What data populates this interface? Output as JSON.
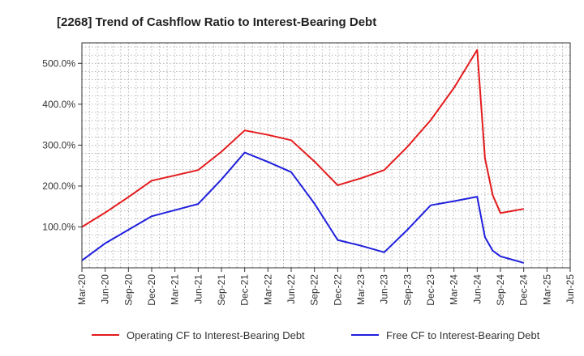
{
  "chart_data": {
    "type": "line",
    "title": "[2268]  Trend of Cashflow Ratio to Interest-Bearing Debt",
    "xlabel": "",
    "ylabel": "",
    "x": [
      "Mar-20",
      "Jun-20",
      "Sep-20",
      "Dec-20",
      "Mar-21",
      "Jun-21",
      "Sep-21",
      "Dec-21",
      "Mar-22",
      "Jun-22",
      "Sep-22",
      "Dec-22",
      "Mar-23",
      "Jun-23",
      "Sep-23",
      "Dec-23",
      "Mar-24",
      "Jun-24",
      "Sep-24",
      "Dec-24",
      "Mar-25",
      "Jun-25"
    ],
    "x_ticks": [
      "Mar-20",
      "Jun-20",
      "Sep-20",
      "Dec-20",
      "Mar-21",
      "Jun-21",
      "Sep-21",
      "Dec-21",
      "Mar-22",
      "Jun-22",
      "Sep-22",
      "Dec-22",
      "Mar-23",
      "Jun-23",
      "Sep-23",
      "Dec-23",
      "Mar-24",
      "Jun-24",
      "Sep-24",
      "Dec-24",
      "Mar-25",
      "Jun-25"
    ],
    "y_ticks": [
      100,
      200,
      300,
      400,
      500
    ],
    "y_tick_labels": [
      "100.0%",
      "200.0%",
      "300.0%",
      "400.0%",
      "500.0%"
    ],
    "ylim": [
      0,
      550
    ],
    "grid": true,
    "legend_position": "bottom",
    "series": [
      {
        "name": "Operating CF to Interest-Bearing Debt",
        "color": "#e41a1c",
        "points": [
          {
            "x": "Mar-20",
            "y": 100
          },
          {
            "x": "Jun-20",
            "y": 135
          },
          {
            "x": "Sep-20",
            "y": 173
          },
          {
            "x": "Dec-20",
            "y": 213
          },
          {
            "x": "Mar-21",
            "y": 226
          },
          {
            "x": "Jun-21",
            "y": 239
          },
          {
            "x": "Sep-21",
            "y": 284
          },
          {
            "x": "Dec-21",
            "y": 336
          },
          {
            "x": "Mar-22",
            "y": 325
          },
          {
            "x": "Jun-22",
            "y": 312
          },
          {
            "x": "Sep-22",
            "y": 260
          },
          {
            "x": "Dec-22",
            "y": 202
          },
          {
            "x": "Mar-23",
            "y": 219
          },
          {
            "x": "Jun-23",
            "y": 239
          },
          {
            "x": "Sep-23",
            "y": 296
          },
          {
            "x": "Dec-23",
            "y": 361
          },
          {
            "x": "Mar-24",
            "y": 440
          },
          {
            "x": "Jun-24",
            "y": 533
          },
          {
            "x": "Jul-24",
            "y": 268
          },
          {
            "x": "Aug-24",
            "y": 178
          },
          {
            "x": "Sep-24",
            "y": 134
          },
          {
            "x": "Dec-24",
            "y": 144
          }
        ]
      },
      {
        "name": "Free CF to Interest-Bearing Debt",
        "color": "#1f1fdd",
        "points": [
          {
            "x": "Mar-20",
            "y": 18
          },
          {
            "x": "Jun-20",
            "y": 60
          },
          {
            "x": "Sep-20",
            "y": 93
          },
          {
            "x": "Dec-20",
            "y": 126
          },
          {
            "x": "Mar-21",
            "y": 141
          },
          {
            "x": "Jun-21",
            "y": 156
          },
          {
            "x": "Sep-21",
            "y": 216
          },
          {
            "x": "Dec-21",
            "y": 282
          },
          {
            "x": "Mar-22",
            "y": 259
          },
          {
            "x": "Jun-22",
            "y": 234
          },
          {
            "x": "Sep-22",
            "y": 157
          },
          {
            "x": "Dec-22",
            "y": 68
          },
          {
            "x": "Mar-23",
            "y": 54
          },
          {
            "x": "Jun-23",
            "y": 38
          },
          {
            "x": "Sep-23",
            "y": 93
          },
          {
            "x": "Dec-23",
            "y": 153
          },
          {
            "x": "Mar-24",
            "y": 163
          },
          {
            "x": "Jun-24",
            "y": 174
          },
          {
            "x": "Jul-24",
            "y": 75
          },
          {
            "x": "Aug-24",
            "y": 42
          },
          {
            "x": "Sep-24",
            "y": 28
          },
          {
            "x": "Dec-24",
            "y": 12
          }
        ]
      }
    ]
  }
}
